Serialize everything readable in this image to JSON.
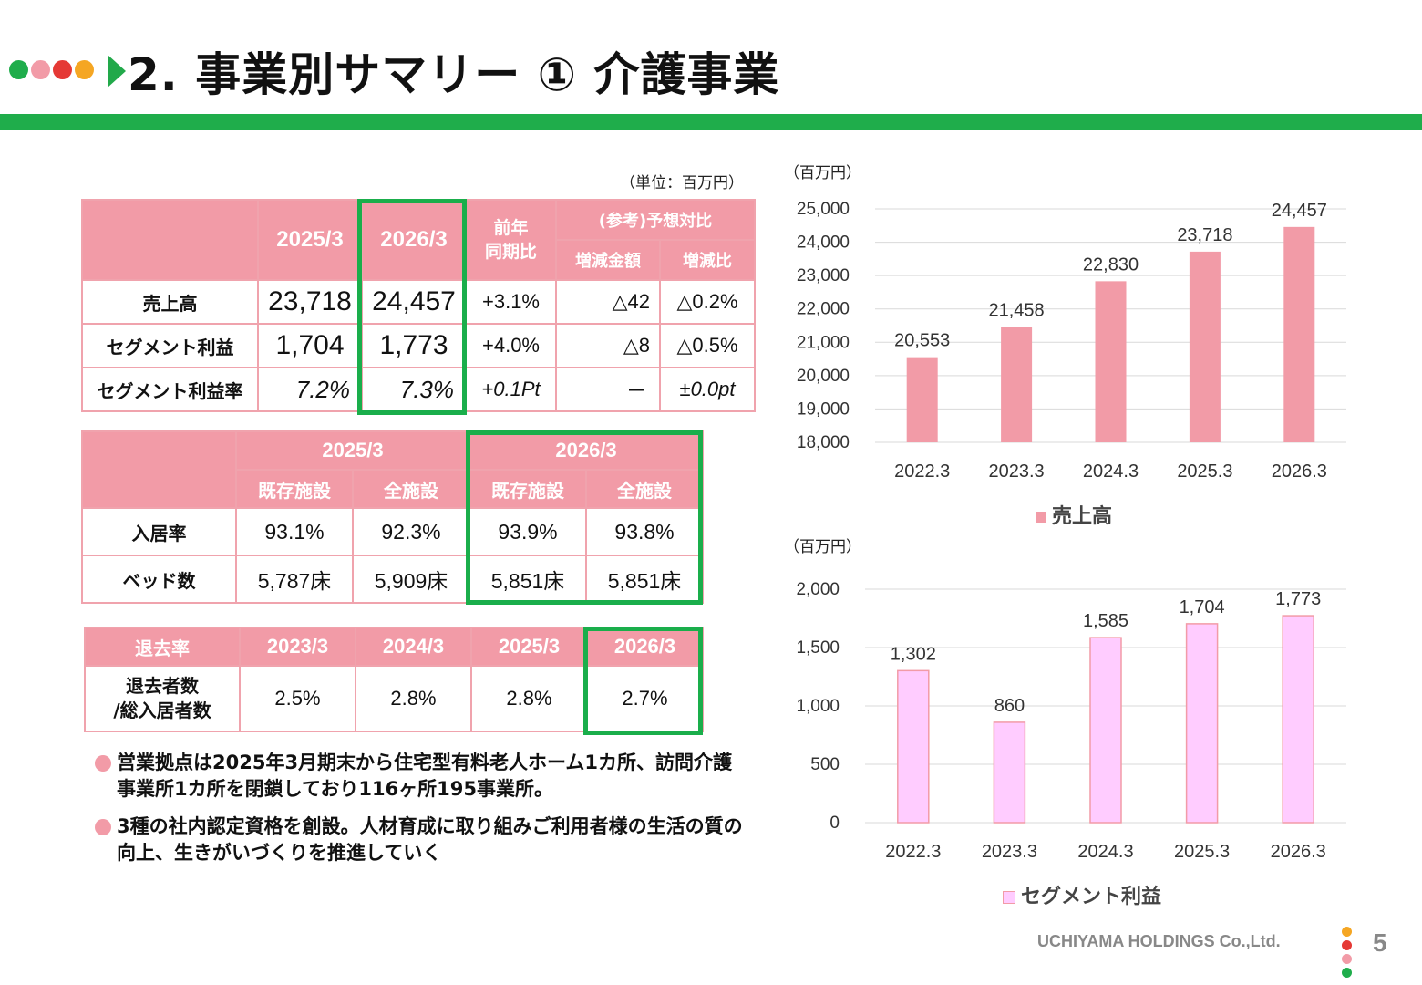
{
  "header": {
    "title": "2. 事業別サマリー ① 介護事業",
    "dot_colors": [
      "#1fad4b",
      "#f29ba7",
      "#e53935",
      "#f5a623"
    ],
    "arrow_color": "#1fad4b"
  },
  "colors": {
    "accent_green": "#1fad4b",
    "header_pink": "#f29ba7",
    "bar_sales": "#f29ba7",
    "bar_profit": "#ffccff"
  },
  "table1": {
    "unit": "（単位：百万円）",
    "col_2025": "2025/3",
    "col_2026": "2026/3",
    "col_yoy": "前年\n同期比",
    "col_ref": "(参考)予想対比",
    "col_diff_amt": "増減金額",
    "col_diff_pct": "増減比",
    "rows": [
      {
        "label": "売上高",
        "v2025": "23,718",
        "v2026": "24,457",
        "yoy": "+3.1%",
        "diff": "△42",
        "pct": "△0.2%"
      },
      {
        "label": "セグメント利益",
        "v2025": "1,704",
        "v2026": "1,773",
        "yoy": "+4.0%",
        "diff": "△8",
        "pct": "△0.5%"
      },
      {
        "label": "セグメント利益率",
        "v2025": "7.2%",
        "v2026": "7.3%",
        "yoy": "+0.1Pt",
        "diff": "－",
        "pct": "±0.0pt"
      }
    ]
  },
  "table2": {
    "col_2025": "2025/3",
    "col_2026": "2026/3",
    "sub_existing": "既存施設",
    "sub_all": "全施設",
    "rows": [
      {
        "label": "入居率",
        "a": "93.1%",
        "b": "92.3%",
        "c": "93.9%",
        "d": "93.8%"
      },
      {
        "label": "ベッド数",
        "a": "5,787床",
        "b": "5,909床",
        "c": "5,851床",
        "d": "5,851床"
      }
    ]
  },
  "table3": {
    "header_label": "退去率",
    "years": [
      "2023/3",
      "2024/3",
      "2025/3",
      "2026/3"
    ],
    "row_label": "退去者数\n/総入居者数",
    "values": [
      "2.5%",
      "2.8%",
      "2.8%",
      "2.7%"
    ]
  },
  "bullets": [
    "営業拠点は2025年3月期末から住宅型有料老人ホーム1カ所、訪問介護事業所1カ所を閉鎖しており116ヶ所195事業所。",
    "3種の社内認定資格を創設。人材育成に取り組みご利用者様の生活の質の向上、生きがいづくりを推進していく"
  ],
  "chart_data": [
    {
      "type": "bar",
      "unit_label": "（百万円）",
      "categories": [
        "2022.3",
        "2023.3",
        "2024.3",
        "2025.3",
        "2026.3"
      ],
      "series": [
        {
          "name": "売上高",
          "values": [
            20553,
            21458,
            22830,
            23718,
            24457
          ],
          "color": "#f29ba7"
        }
      ],
      "data_labels": [
        "20,553",
        "21,458",
        "22,830",
        "23,718",
        "24,457"
      ],
      "ylim": [
        18000,
        25000
      ],
      "yticks": [
        18000,
        19000,
        20000,
        21000,
        22000,
        23000,
        24000,
        25000
      ],
      "ytick_labels": [
        "18,000",
        "19,000",
        "20,000",
        "21,000",
        "22,000",
        "23,000",
        "24,000",
        "25,000"
      ],
      "grid": true,
      "legend": "bottom"
    },
    {
      "type": "bar",
      "unit_label": "（百万円）",
      "categories": [
        "2022.3",
        "2023.3",
        "2024.3",
        "2025.3",
        "2026.3"
      ],
      "series": [
        {
          "name": "セグメント利益",
          "values": [
            1302,
            860,
            1585,
            1704,
            1773
          ],
          "color": "#ffccff"
        }
      ],
      "data_labels": [
        "1,302",
        "860",
        "1,585",
        "1,704",
        "1,773"
      ],
      "ylim": [
        0,
        2000
      ],
      "yticks": [
        0,
        500,
        1000,
        1500,
        2000
      ],
      "ytick_labels": [
        "0",
        "500",
        "1,000",
        "1,500",
        "2,000"
      ],
      "grid": true,
      "legend": "bottom"
    }
  ],
  "footer": {
    "company": "UCHIYAMA HOLDINGS Co.,Ltd.",
    "page": "5",
    "dot_colors": [
      "#f5a623",
      "#e53935",
      "#f29ba7",
      "#1fad4b"
    ]
  }
}
